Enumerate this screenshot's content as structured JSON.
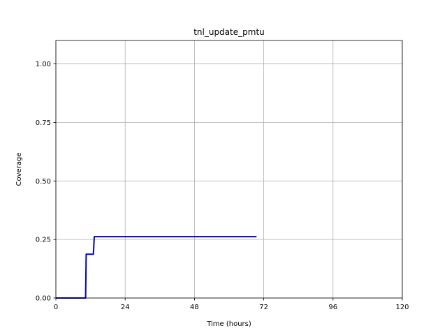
{
  "chart_data": {
    "type": "line",
    "title": "tnl_update_pmtu",
    "xlabel": "Time (hours)",
    "ylabel": "Coverage",
    "xlim": [
      0,
      120
    ],
    "ylim": [
      0,
      1.1
    ],
    "xticks": [
      0,
      24,
      48,
      72,
      96,
      120
    ],
    "xtick_labels": [
      "0",
      "24",
      "48",
      "72",
      "96",
      "120"
    ],
    "yticks": [
      0,
      0.25,
      0.5,
      0.75,
      1.0
    ],
    "ytick_labels": [
      "0.00",
      "0.25",
      "0.50",
      "0.75",
      "1.00"
    ],
    "grid": true,
    "series": [
      {
        "color": "#0000cc",
        "x": [
          0,
          10.3,
          10.5,
          13.0,
          13.3,
          69.5
        ],
        "y": [
          0,
          0,
          0.187,
          0.187,
          0.262,
          0.262
        ]
      }
    ]
  }
}
